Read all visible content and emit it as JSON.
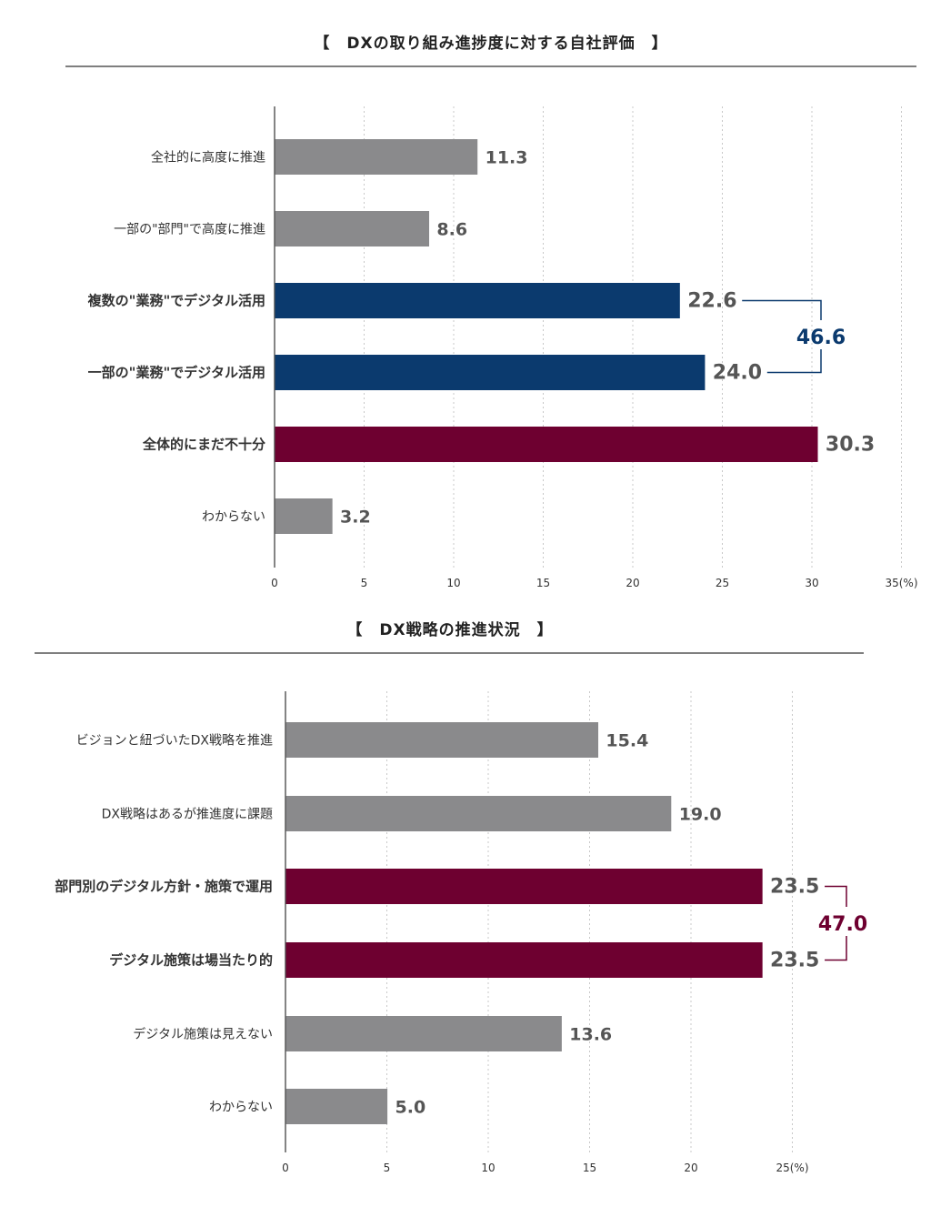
{
  "colors": {
    "gray": "#8a8a8c",
    "navy": "#0b3a6e",
    "maroon": "#6e0030",
    "grid": "#c8c8c8",
    "axis": "#333333",
    "rule": "#333333"
  },
  "chart_data": [
    {
      "type": "bar",
      "orientation": "horizontal",
      "title": "【　DXの取り組み進捗度に対する自社評価　】",
      "categories": [
        "全社的に高度に推進",
        "一部の\"部門\"で高度に推進",
        "複数の\"業務\"でデジタル活用",
        "一部の\"業務\"でデジタル活用",
        "全体的にまだ不十分",
        "わからない"
      ],
      "values": [
        11.3,
        8.6,
        22.6,
        24.0,
        30.3,
        3.2
      ],
      "value_labels": [
        "11.3",
        "8.6",
        "22.6",
        "24.0",
        "30.3",
        "3.2"
      ],
      "bar_colors": [
        "gray",
        "gray",
        "navy",
        "navy",
        "maroon",
        "gray"
      ],
      "xlim": [
        0,
        35
      ],
      "tick_values": [
        0,
        5,
        10,
        15,
        20,
        25,
        30,
        35
      ],
      "tick_labels": [
        "0",
        "5",
        "10",
        "15",
        "20",
        "25",
        "30",
        "35(%)"
      ],
      "grid": true,
      "bracket": {
        "from": 2,
        "to": 3,
        "label": "46.6",
        "color": "navy"
      }
    },
    {
      "type": "bar",
      "orientation": "horizontal",
      "title": "【　DX戦略の推進状況　】",
      "categories": [
        "ビジョンと紐づいたDX戦略を推進",
        "DX戦略はあるが推進度に課題",
        "部門別のデジタル方針・施策で運用",
        "デジタル施策は場当たり的",
        "デジタル施策は見えない",
        "わからない"
      ],
      "values": [
        15.4,
        19.0,
        23.5,
        23.5,
        13.6,
        5.0
      ],
      "value_labels": [
        "15.4",
        "19.0",
        "23.5",
        "23.5",
        "13.6",
        "5.0"
      ],
      "bar_colors": [
        "gray",
        "gray",
        "maroon",
        "maroon",
        "gray",
        "gray"
      ],
      "xlim": [
        0,
        25
      ],
      "tick_values": [
        0,
        5,
        10,
        15,
        20,
        25
      ],
      "tick_labels": [
        "0",
        "5",
        "10",
        "15",
        "20",
        "25(%)"
      ],
      "grid": true,
      "bracket": {
        "from": 2,
        "to": 3,
        "label": "47.0",
        "color": "maroon"
      }
    }
  ]
}
